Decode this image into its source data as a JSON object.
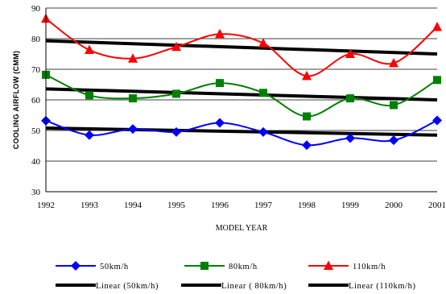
{
  "chart_data": {
    "type": "line",
    "title": "",
    "xlabel": "MODEL YEAR",
    "ylabel": "COOLING AIRFLOW (CMM)",
    "x": [
      "1992",
      "1993",
      "1994",
      "1995",
      "1996",
      "1997",
      "1998",
      "1999",
      "2000",
      "2001"
    ],
    "ylim": [
      30,
      90
    ],
    "yticks": [
      30,
      40,
      50,
      60,
      70,
      80,
      90
    ],
    "grid": "horizontal",
    "legend_position": "bottom",
    "series": [
      {
        "name": "50km/h",
        "color": "#0000ff",
        "marker": "diamond",
        "values": [
          53.2,
          48.5,
          50.5,
          49.5,
          52.5,
          49.5,
          45.2,
          47.5,
          46.8,
          53.3
        ]
      },
      {
        "name": "80km/h",
        "color": "#008000",
        "marker": "square",
        "values": [
          68.2,
          61.5,
          60.5,
          62.0,
          65.5,
          62.3,
          54.6,
          60.5,
          58.3,
          66.5
        ]
      },
      {
        "name": "110km/h",
        "color": "#ff0000",
        "marker": "triangle",
        "values": [
          86.5,
          76.3,
          73.5,
          77.3,
          81.5,
          78.5,
          67.8,
          75.0,
          72.0,
          83.8
        ]
      }
    ],
    "trendlines": [
      {
        "name": "Linear (50km/h)",
        "color": "#000000",
        "start": 50.8,
        "end": 48.5
      },
      {
        "name": "Linear ( 80km/h)",
        "color": "#000000",
        "start": 63.6,
        "end": 60.0
      },
      {
        "name": "Linear (110km/h)",
        "color": "#000000",
        "start": 79.3,
        "end": 75.0
      }
    ]
  }
}
